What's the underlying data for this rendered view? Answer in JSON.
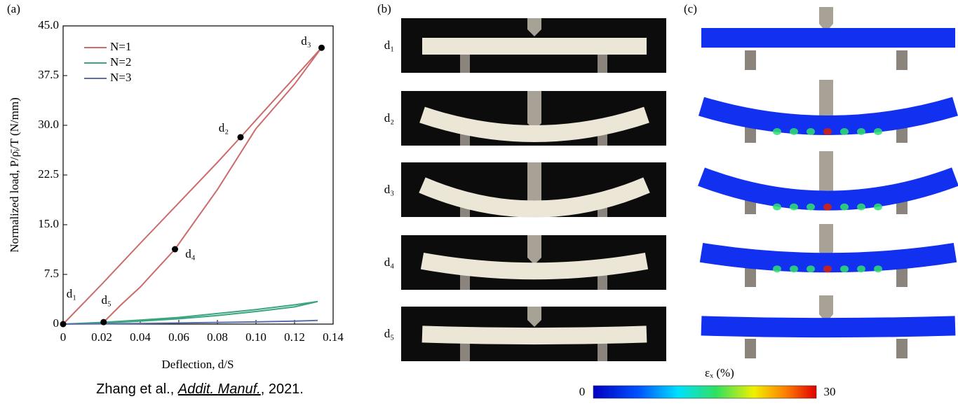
{
  "chart_data": {
    "type": "line",
    "panel_label": "(a)",
    "xlabel": "Deflection, d/S",
    "ylabel": "Normalized load, P/ρ̄ᵢ/T (N/mm)",
    "xlim": [
      0,
      0.14
    ],
    "ylim": [
      0,
      45
    ],
    "xticks": [
      0,
      0.02,
      0.04,
      0.06,
      0.08,
      {
        "value": 0.1,
        "label": "0.10"
      },
      0.12,
      0.14
    ],
    "yticks": [
      0,
      7.5,
      {
        "value": 15,
        "label": "15.0"
      },
      22.5,
      {
        "value": 30,
        "label": "30.0"
      },
      37.5,
      {
        "value": 45,
        "label": "45.0"
      }
    ],
    "legend": "upper left",
    "series": [
      {
        "name": "N=1",
        "color": "#cd6b6b",
        "x": [
          0,
          0.02,
          0.04,
          0.06,
          0.08,
          0.092,
          0.1,
          0.12,
          0.134,
          0.12,
          0.1,
          0.08,
          0.058,
          0.04,
          0.03,
          0.021
        ],
        "values": [
          0,
          6.0,
          12.2,
          18.3,
          24.4,
          28.2,
          30.8,
          37.2,
          41.7,
          36.2,
          29.5,
          20.3,
          11.3,
          5.6,
          2.9,
          0.3
        ]
      },
      {
        "name": "N=2",
        "color": "#3aa57e",
        "x": [
          0,
          0.02,
          0.04,
          0.06,
          0.08,
          0.1,
          0.12,
          0.132,
          0.12,
          0.1,
          0.08,
          0.06,
          0.04,
          0.021
        ],
        "values": [
          0,
          0.25,
          0.6,
          1.0,
          1.6,
          2.2,
          2.9,
          3.4,
          2.6,
          1.9,
          1.3,
          0.8,
          0.45,
          0.2
        ]
      },
      {
        "name": "N=3",
        "color": "#5b6fa8",
        "x": [
          0,
          0.02,
          0.04,
          0.06,
          0.08,
          0.1,
          0.12,
          0.132
        ],
        "values": [
          0,
          0.05,
          0.1,
          0.17,
          0.25,
          0.33,
          0.45,
          0.55
        ]
      }
    ],
    "points": [
      {
        "label": "d₁",
        "x": 0,
        "y": 0
      },
      {
        "label": "d₂",
        "x": 0.092,
        "y": 28.2
      },
      {
        "label": "d₃",
        "x": 0.134,
        "y": 41.7
      },
      {
        "label": "d₄",
        "x": 0.058,
        "y": 11.3
      },
      {
        "label": "d₅",
        "x": 0.021,
        "y": 0.3
      }
    ]
  },
  "panel_b": {
    "label": "(b)",
    "rows": [
      "d₁",
      "d₂",
      "d₃",
      "d₄",
      "d₅"
    ]
  },
  "panel_c": {
    "label": "(c)",
    "colorbar": {
      "label": "εₓ (%)",
      "min": 0,
      "max": 30
    }
  },
  "caption": [
    "Zhang et al., ",
    "Addit. Manuf.",
    ", 2021."
  ]
}
